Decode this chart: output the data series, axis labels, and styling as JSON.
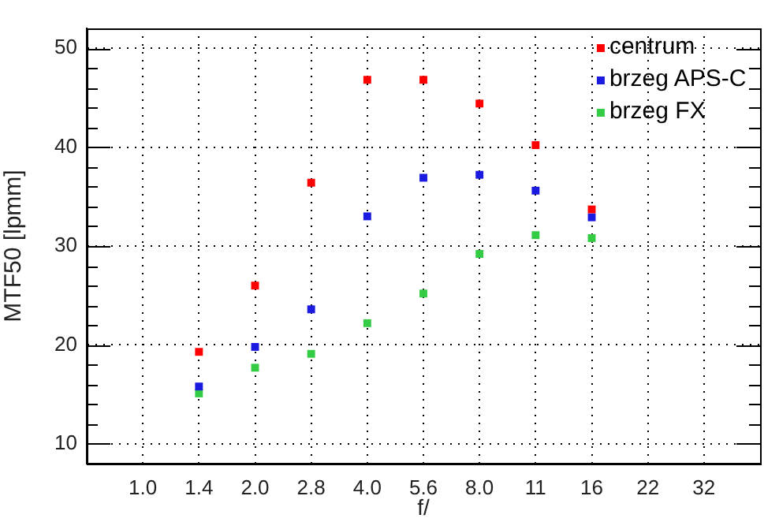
{
  "chart_data": {
    "type": "scatter",
    "xlabel": "f/",
    "ylabel": "MTF50 [lpmm]",
    "categories": [
      null,
      "1.0",
      "1.4",
      "2.0",
      "2.8",
      "4.0",
      "5.6",
      "8.0",
      "11",
      "16",
      "22",
      "32",
      null
    ],
    "series": [
      {
        "name": "centrum",
        "color": "#ff0000",
        "values": [
          null,
          null,
          19.3,
          26.0,
          36.4,
          46.8,
          46.8,
          44.4,
          40.2,
          33.7,
          null,
          null,
          null
        ]
      },
      {
        "name": "brzeg APS-C",
        "color": "#1a1ae0",
        "values": [
          null,
          null,
          15.8,
          19.8,
          23.6,
          33.0,
          36.9,
          37.2,
          35.6,
          32.9,
          null,
          null,
          null
        ]
      },
      {
        "name": "brzeg FX",
        "color": "#33cc44",
        "values": [
          null,
          null,
          15.1,
          17.7,
          19.1,
          22.2,
          25.2,
          29.2,
          31.1,
          30.8,
          null,
          null,
          null
        ]
      }
    ],
    "ylim": [
      8,
      52
    ],
    "yticks": [
      10,
      {
        "value": 12,
        "label": null
      },
      {
        "value": 14,
        "label": null
      },
      {
        "value": 16,
        "label": null
      },
      {
        "value": 18,
        "label": null
      },
      20,
      {
        "value": 22,
        "label": null
      },
      {
        "value": 24,
        "label": null
      },
      {
        "value": 26,
        "label": null
      },
      {
        "value": 28,
        "label": null
      },
      30,
      {
        "value": 32,
        "label": null
      },
      {
        "value": 34,
        "label": null
      },
      {
        "value": 36,
        "label": null
      },
      {
        "value": 38,
        "label": null
      },
      40,
      {
        "value": 42,
        "label": null
      },
      {
        "value": 44,
        "label": null
      },
      {
        "value": 46,
        "label": null
      },
      {
        "value": 48,
        "label": null
      },
      50
    ],
    "grid": true,
    "legend": "top right",
    "marker": "square"
  }
}
